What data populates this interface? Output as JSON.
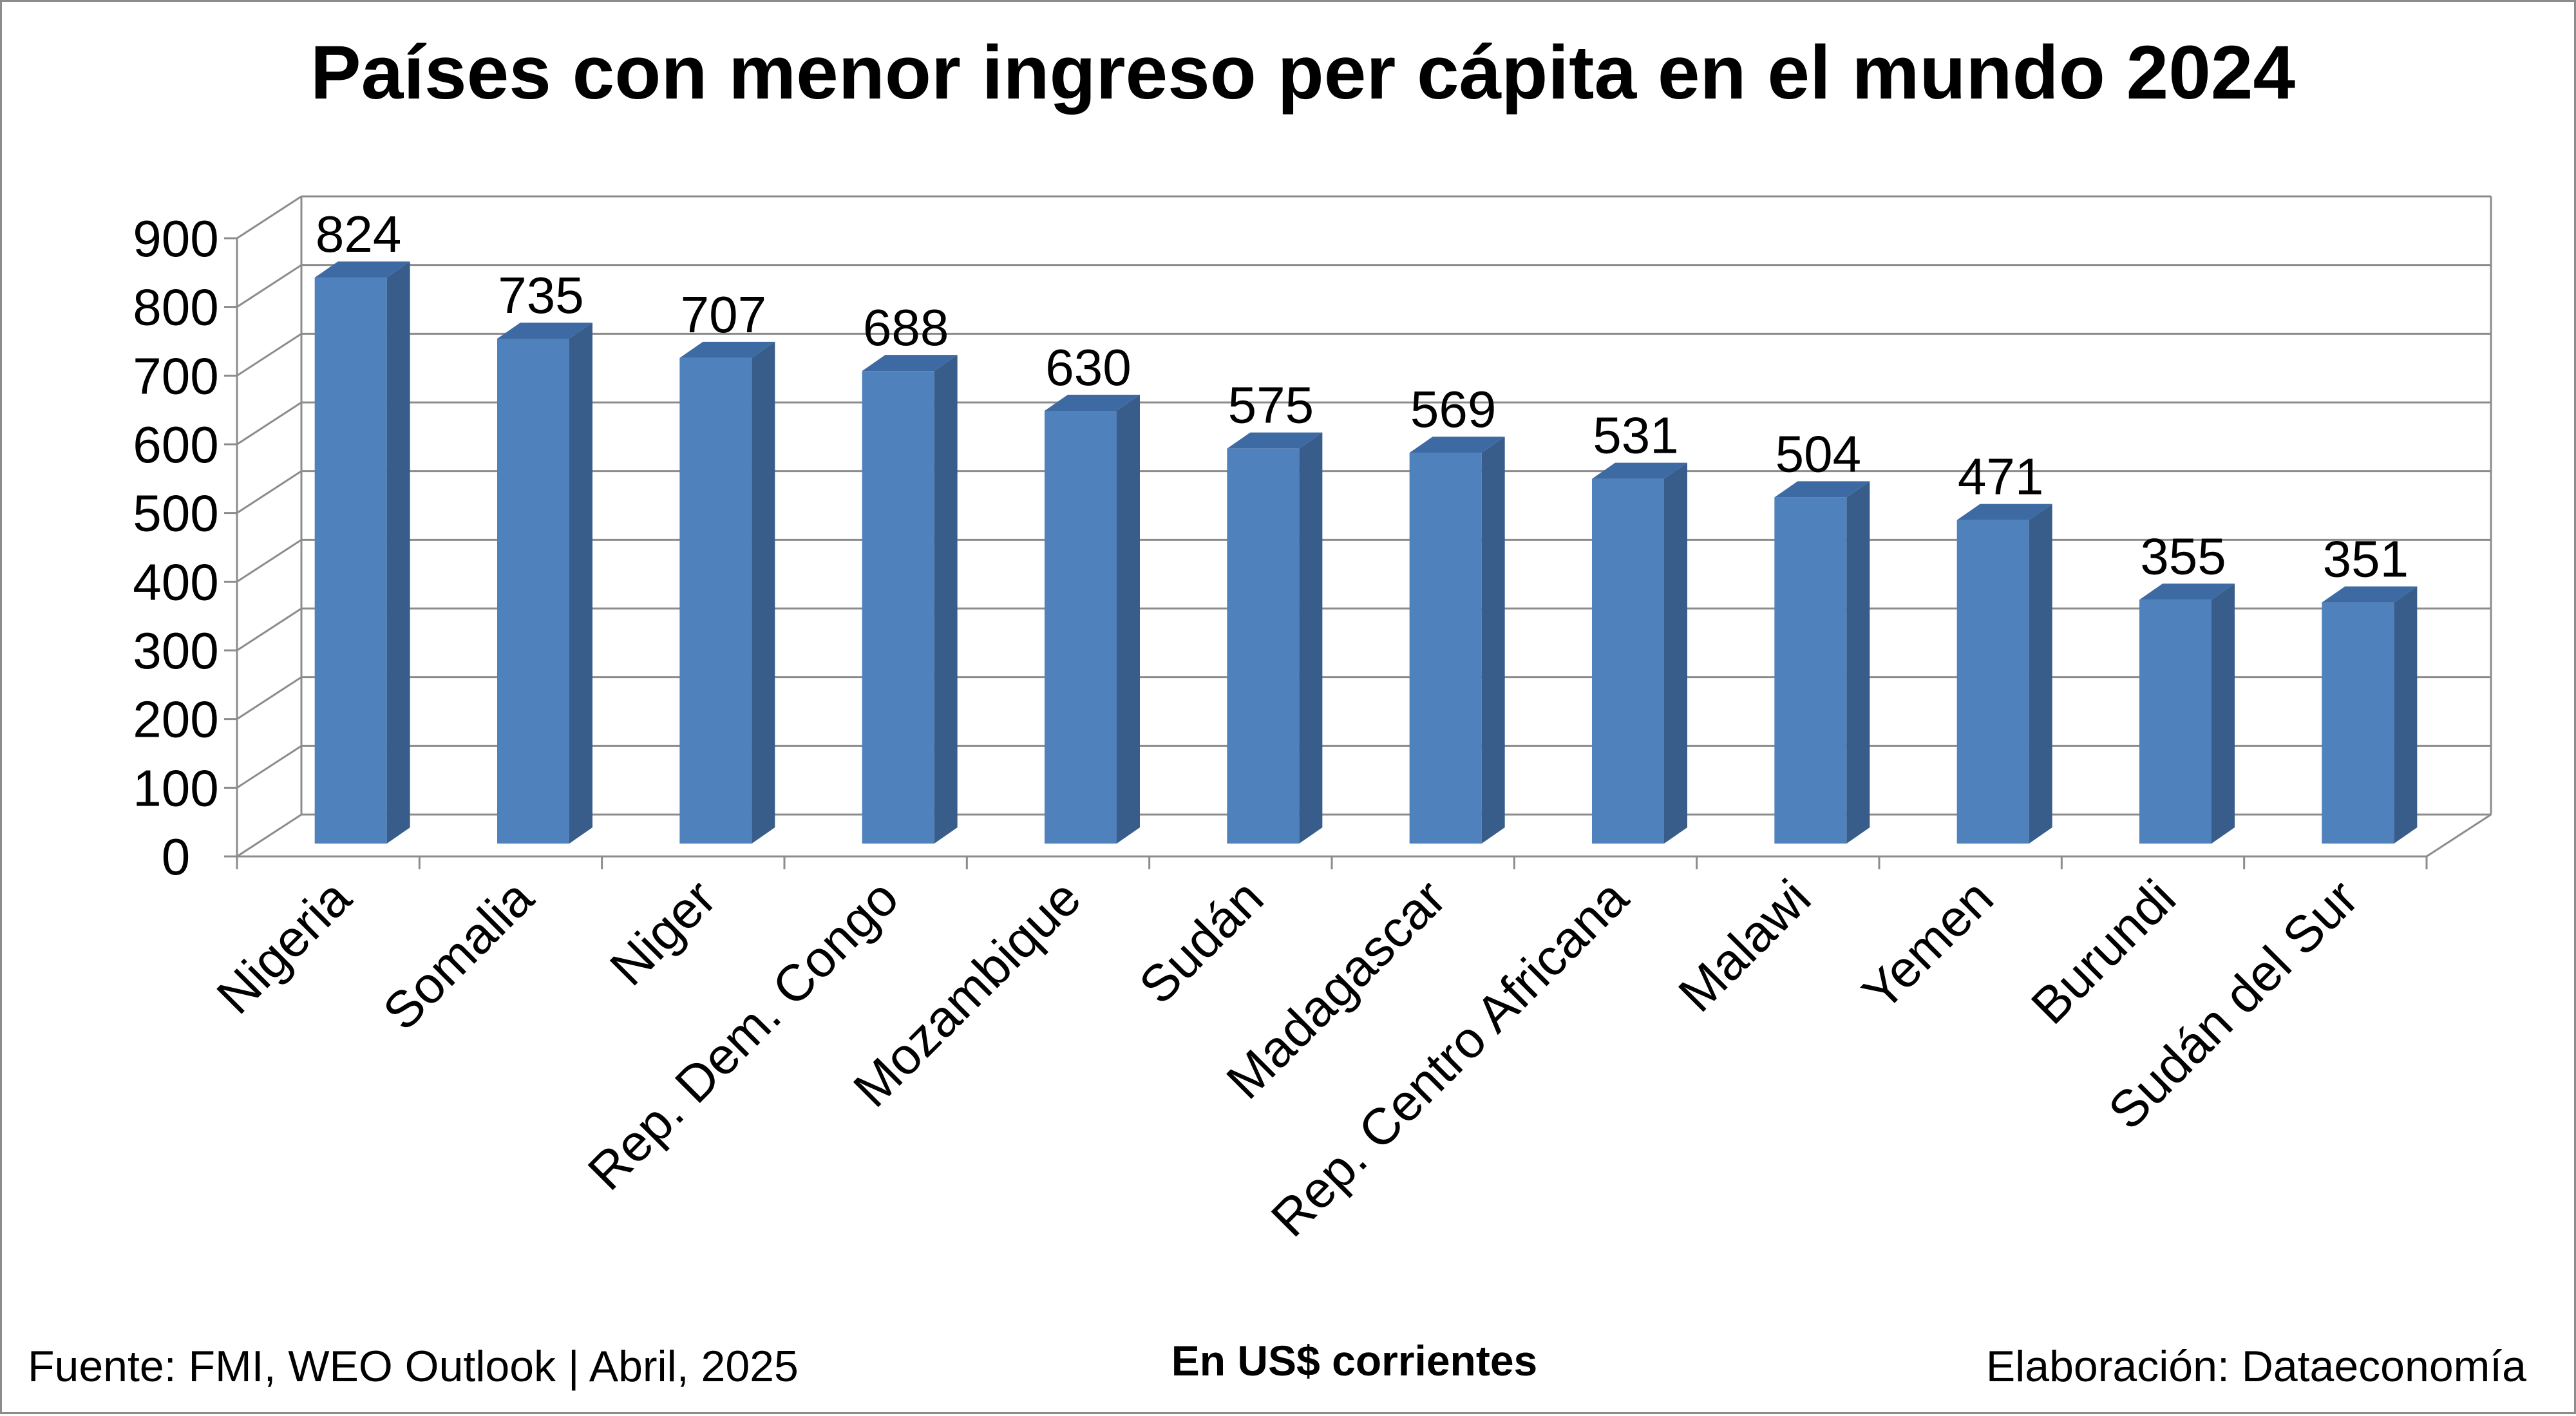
{
  "chart_data": {
    "type": "bar",
    "title": "Países con menor ingreso per cápita en el mundo 2024",
    "categories": [
      "Nigeria",
      "Somalia",
      "Niger",
      "Rep.  Dem. Congo",
      "Mozambique",
      "Sudán",
      "Madagascar",
      "Rep. Centro Africana",
      "Malawi",
      "Yemen",
      "Burundi",
      "Sudán del Sur"
    ],
    "series": [
      {
        "values": [
          824,
          735,
          707,
          688,
          630,
          575,
          569,
          531,
          504,
          471,
          355,
          351
        ]
      }
    ],
    "ylim": [
      0,
      900
    ],
    "yticks": [
      0,
      100,
      200,
      300,
      400,
      500,
      600,
      700,
      800,
      900
    ],
    "xlabel": "",
    "ylabel": "",
    "unit_note": "En US$ corrientes",
    "grid": true,
    "legend": "none",
    "style": "3d-column",
    "colors": {
      "bar_front": "#4f81bd",
      "bar_side": "#385d8a",
      "bar_top": "#3e6aa3",
      "grid": "#8c8c8c",
      "frame": "#8c8c8c",
      "text": "#000000"
    }
  },
  "footer": {
    "source": "Fuente: FMI, WEO Outlook | Abril, 2025",
    "unit": "En US$ corrientes",
    "credit": "Elaboración: Dataeconomía"
  }
}
